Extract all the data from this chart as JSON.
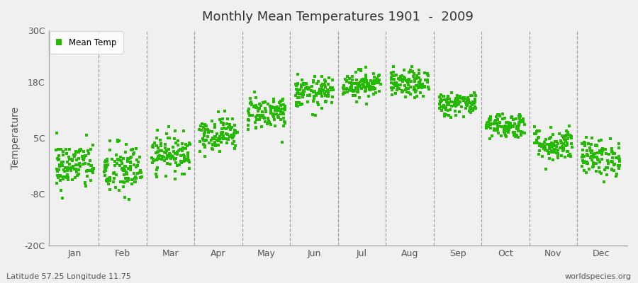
{
  "title": "Monthly Mean Temperatures 1901  -  2009",
  "ylabel": "Temperature",
  "subtitle_left": "Latitude 57.25 Longitude 11.75",
  "subtitle_right": "worldspecies.org",
  "yticks": [
    -20,
    -8,
    5,
    18,
    30
  ],
  "ytick_labels": [
    "-20C",
    "-8C",
    "5C",
    "18C",
    "30C"
  ],
  "ylim": [
    -20,
    30
  ],
  "figure_bg_color": "#f0f0f0",
  "plot_bg_color": "#f0f0f0",
  "dot_color": "#22bb00",
  "dot_size": 6,
  "legend_label": "Mean Temp",
  "months": [
    "Jan",
    "Feb",
    "Mar",
    "Apr",
    "May",
    "Jun",
    "Jul",
    "Aug",
    "Sep",
    "Oct",
    "Nov",
    "Dec"
  ],
  "monthly_means": [
    -1.5,
    -2.5,
    1.5,
    6.0,
    11.0,
    15.5,
    17.5,
    17.5,
    13.0,
    8.0,
    3.5,
    0.5
  ],
  "monthly_stds": [
    2.8,
    3.2,
    2.2,
    2.0,
    2.0,
    1.8,
    1.6,
    1.6,
    1.4,
    1.5,
    2.0,
    2.2
  ],
  "n_years": 109,
  "vline_color": "#999999",
  "spine_color": "#aaaaaa",
  "tick_label_color": "#555555"
}
